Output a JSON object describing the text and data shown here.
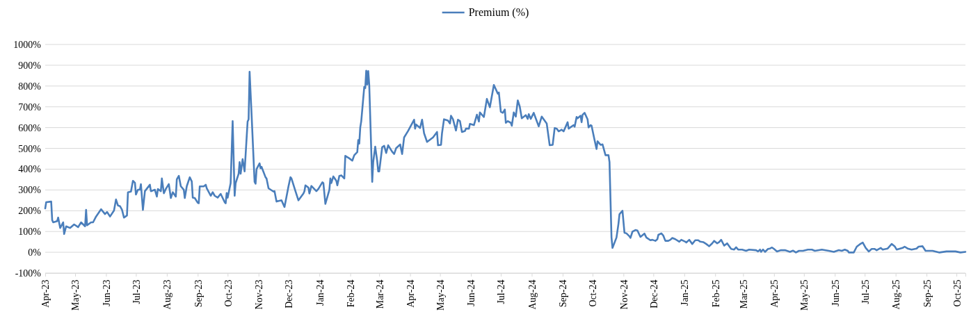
{
  "chart_data": {
    "type": "line",
    "legend": "top",
    "grid": "y",
    "line_style": "solid",
    "marker": "none",
    "xlim": [
      "2023-04-01",
      "2025-10-10"
    ],
    "ylim": [
      -100,
      1000
    ],
    "yticks": [
      {
        "value": -100,
        "label": "-100%"
      },
      {
        "value": 0,
        "label": "0%"
      },
      {
        "value": 100,
        "label": "100%"
      },
      {
        "value": 200,
        "label": "200%"
      },
      {
        "value": 300,
        "label": "300%"
      },
      {
        "value": 400,
        "label": "400%"
      },
      {
        "value": 500,
        "label": "500%"
      },
      {
        "value": 600,
        "label": "600%"
      },
      {
        "value": 700,
        "label": "700%"
      },
      {
        "value": 800,
        "label": "800%"
      },
      {
        "value": 900,
        "label": "900%"
      },
      {
        "value": 1000,
        "label": "1000%"
      }
    ],
    "xticks": [
      {
        "value": "2023-04-01",
        "label": "Apr-23"
      },
      {
        "value": "2023-05-01",
        "label": "May-23"
      },
      {
        "value": "2023-06-01",
        "label": "Jun-23"
      },
      {
        "value": "2023-07-01",
        "label": "Jul-23"
      },
      {
        "value": "2023-08-01",
        "label": "Aug-23"
      },
      {
        "value": "2023-09-01",
        "label": "Sep-23"
      },
      {
        "value": "2023-10-01",
        "label": "Oct-23"
      },
      {
        "value": "2023-11-01",
        "label": "Nov-23"
      },
      {
        "value": "2023-12-01",
        "label": "Dec-23"
      },
      {
        "value": "2024-01-01",
        "label": "Jan-24"
      },
      {
        "value": "2024-02-01",
        "label": "Feb-24"
      },
      {
        "value": "2024-03-01",
        "label": "Mar-24"
      },
      {
        "value": "2024-04-01",
        "label": "Apr-24"
      },
      {
        "value": "2024-05-01",
        "label": "May-24"
      },
      {
        "value": "2024-06-01",
        "label": "Jun-24"
      },
      {
        "value": "2024-07-01",
        "label": "Jul-24"
      },
      {
        "value": "2024-08-01",
        "label": "Aug-24"
      },
      {
        "value": "2024-09-01",
        "label": "Sep-24"
      },
      {
        "value": "2024-10-01",
        "label": "Oct-24"
      },
      {
        "value": "2024-11-01",
        "label": "Nov-24"
      },
      {
        "value": "2024-12-01",
        "label": "Dec-24"
      },
      {
        "value": "2025-01-01",
        "label": "Jan-25"
      },
      {
        "value": "2025-02-01",
        "label": "Feb-25"
      },
      {
        "value": "2025-03-01",
        "label": "Mar-25"
      },
      {
        "value": "2025-04-01",
        "label": "Apr-25"
      },
      {
        "value": "2025-05-01",
        "label": "May-25"
      },
      {
        "value": "2025-06-01",
        "label": "Jun-25"
      },
      {
        "value": "2025-07-01",
        "label": "Jul-25"
      },
      {
        "value": "2025-08-01",
        "label": "Aug-25"
      },
      {
        "value": "2025-09-01",
        "label": "Sep-25"
      },
      {
        "value": "2025-10-01",
        "label": "Oct-25"
      }
    ],
    "series": [
      {
        "name": "Premium (%)",
        "color": "#4a7ebb",
        "x": [
          "2023-04-01",
          "2023-04-02",
          "2023-04-07",
          "2023-04-08",
          "2023-04-09",
          "2023-04-13",
          "2023-04-14",
          "2023-04-16",
          "2023-04-19",
          "2023-04-20",
          "2023-04-22",
          "2023-04-26",
          "2023-04-30",
          "2023-05-04",
          "2023-05-07",
          "2023-05-11",
          "2023-05-12",
          "2023-05-13",
          "2023-05-17",
          "2023-05-19",
          "2023-05-22",
          "2023-05-27",
          "2023-05-31",
          "2023-06-02",
          "2023-06-05",
          "2023-06-09",
          "2023-06-11",
          "2023-06-13",
          "2023-06-15",
          "2023-06-17",
          "2023-06-19",
          "2023-06-22",
          "2023-06-23",
          "2023-06-26",
          "2023-06-28",
          "2023-06-30",
          "2023-07-01",
          "2023-07-03",
          "2023-07-05",
          "2023-07-06",
          "2023-07-08",
          "2023-07-10",
          "2023-07-15",
          "2023-07-16",
          "2023-07-20",
          "2023-07-22",
          "2023-07-23",
          "2023-07-26",
          "2023-07-27",
          "2023-07-29",
          "2023-07-31",
          "2023-08-03",
          "2023-08-05",
          "2023-08-07",
          "2023-08-10",
          "2023-08-11",
          "2023-08-13",
          "2023-08-15",
          "2023-08-18",
          "2023-08-19",
          "2023-08-21",
          "2023-08-24",
          "2023-08-26",
          "2023-08-27",
          "2023-08-29",
          "2023-09-01",
          "2023-09-02",
          "2023-09-03",
          "2023-09-07",
          "2023-09-09",
          "2023-09-10",
          "2023-09-14",
          "2023-09-16",
          "2023-09-18",
          "2023-09-21",
          "2023-09-24",
          "2023-09-28",
          "2023-09-29",
          "2023-09-30",
          "2023-10-01",
          "2023-10-04",
          "2023-10-06",
          "2023-10-08",
          "2023-10-09",
          "2023-10-12",
          "2023-10-13",
          "2023-10-14",
          "2023-10-16",
          "2023-10-18",
          "2023-10-21",
          "2023-10-22",
          "2023-10-23",
          "2023-10-25",
          "2023-10-28",
          "2023-10-29",
          "2023-10-30",
          "2023-11-02",
          "2023-11-03",
          "2023-11-04",
          "2023-11-08",
          "2023-11-09",
          "2023-11-11",
          "2023-11-16",
          "2023-11-17",
          "2023-11-19",
          "2023-11-24",
          "2023-11-27",
          "2023-11-29",
          "2023-12-01",
          "2023-12-03",
          "2023-12-04",
          "2023-12-08",
          "2023-12-11",
          "2023-12-16",
          "2023-12-17",
          "2023-12-18",
          "2023-12-21",
          "2023-12-22",
          "2023-12-24",
          "2023-12-29",
          "2023-12-31",
          "2024-01-04",
          "2024-01-05",
          "2024-01-07",
          "2024-01-11",
          "2024-01-12",
          "2024-01-13",
          "2024-01-15",
          "2024-01-18",
          "2024-01-19",
          "2024-01-21",
          "2024-01-23",
          "2024-01-26",
          "2024-01-27",
          "2024-01-31",
          "2024-02-03",
          "2024-02-05",
          "2024-02-08",
          "2024-02-09",
          "2024-02-10",
          "2024-02-11",
          "2024-02-12",
          "2024-02-15",
          "2024-02-16",
          "2024-02-17",
          "2024-02-18",
          "2024-02-19",
          "2024-02-20",
          "2024-02-23",
          "2024-02-24",
          "2024-02-26",
          "2024-02-28",
          "2024-02-29",
          "2024-03-01",
          "2024-03-04",
          "2024-03-06",
          "2024-03-08",
          "2024-03-10",
          "2024-03-14",
          "2024-03-16",
          "2024-03-18",
          "2024-03-22",
          "2024-03-24",
          "2024-03-26",
          "2024-03-30",
          "2024-04-05",
          "2024-04-06",
          "2024-04-07",
          "2024-04-11",
          "2024-04-13",
          "2024-04-15",
          "2024-04-18",
          "2024-04-21",
          "2024-04-24",
          "2024-04-28",
          "2024-04-29",
          "2024-05-02",
          "2024-05-03",
          "2024-05-05",
          "2024-05-09",
          "2024-05-11",
          "2024-05-12",
          "2024-05-14",
          "2024-05-17",
          "2024-05-19",
          "2024-05-21",
          "2024-05-23",
          "2024-05-26",
          "2024-05-27",
          "2024-05-30",
          "2024-05-31",
          "2024-06-04",
          "2024-06-07",
          "2024-06-09",
          "2024-06-10",
          "2024-06-14",
          "2024-06-17",
          "2024-06-20",
          "2024-06-24",
          "2024-06-28",
          "2024-06-29",
          "2024-07-01",
          "2024-07-03",
          "2024-07-05",
          "2024-07-06",
          "2024-07-08",
          "2024-07-11",
          "2024-07-12",
          "2024-07-14",
          "2024-07-16",
          "2024-07-18",
          "2024-07-20",
          "2024-07-22",
          "2024-07-26",
          "2024-07-28",
          "2024-07-29",
          "2024-07-31",
          "2024-08-03",
          "2024-08-05",
          "2024-08-08",
          "2024-08-11",
          "2024-08-16",
          "2024-08-19",
          "2024-08-22",
          "2024-08-24",
          "2024-08-26",
          "2024-08-28",
          "2024-08-31",
          "2024-09-02",
          "2024-09-06",
          "2024-09-07",
          "2024-09-12",
          "2024-09-13",
          "2024-09-15",
          "2024-09-16",
          "2024-09-19",
          "2024-09-20",
          "2024-09-21",
          "2024-09-23",
          "2024-09-26",
          "2024-09-27",
          "2024-09-29",
          "2024-09-30",
          "2024-10-03",
          "2024-10-05",
          "2024-10-06",
          "2024-10-09",
          "2024-10-11",
          "2024-10-14",
          "2024-10-17",
          "2024-10-18",
          "2024-10-19",
          "2024-10-20",
          "2024-10-21",
          "2024-10-25",
          "2024-10-27",
          "2024-10-28",
          "2024-10-31",
          "2024-11-02",
          "2024-11-04",
          "2024-11-07",
          "2024-11-08",
          "2024-11-10",
          "2024-11-13",
          "2024-11-15",
          "2024-11-18",
          "2024-11-22",
          "2024-11-24",
          "2024-11-28",
          "2024-11-30",
          "2024-12-03",
          "2024-12-05",
          "2024-12-06",
          "2024-12-09",
          "2024-12-11",
          "2024-12-13",
          "2024-12-16",
          "2024-12-18",
          "2024-12-20",
          "2024-12-23",
          "2024-12-27",
          "2024-12-29",
          "2025-01-02",
          "2025-01-03",
          "2025-01-06",
          "2025-01-09",
          "2025-01-12",
          "2025-01-15",
          "2025-01-17",
          "2025-01-20",
          "2025-01-23",
          "2025-01-26",
          "2025-01-29",
          "2025-01-31",
          "2025-02-03",
          "2025-02-05",
          "2025-02-07",
          "2025-02-10",
          "2025-02-13",
          "2025-02-17",
          "2025-02-20",
          "2025-02-22",
          "2025-02-24",
          "2025-02-28",
          "2025-03-04",
          "2025-03-07",
          "2025-03-14",
          "2025-03-16",
          "2025-03-18",
          "2025-03-19",
          "2025-03-21",
          "2025-03-23",
          "2025-03-26",
          "2025-03-28",
          "2025-03-30",
          "2025-04-01",
          "2025-04-04",
          "2025-04-08",
          "2025-04-12",
          "2025-04-17",
          "2025-04-20",
          "2025-04-23",
          "2025-04-26",
          "2025-04-30",
          "2025-05-05",
          "2025-05-09",
          "2025-05-12",
          "2025-05-19",
          "2025-05-26",
          "2025-05-31",
          "2025-06-05",
          "2025-06-08",
          "2025-06-11",
          "2025-06-14",
          "2025-06-15",
          "2025-06-20",
          "2025-06-23",
          "2025-06-26",
          "2025-06-29",
          "2025-07-02",
          "2025-07-05",
          "2025-07-08",
          "2025-07-11",
          "2025-07-13",
          "2025-07-17",
          "2025-07-19",
          "2025-07-24",
          "2025-07-28",
          "2025-07-31",
          "2025-08-02",
          "2025-08-08",
          "2025-08-10",
          "2025-08-13",
          "2025-08-17",
          "2025-08-22",
          "2025-08-24",
          "2025-08-28",
          "2025-08-31",
          "2025-09-07",
          "2025-09-14",
          "2025-09-21",
          "2025-09-30",
          "2025-10-05",
          "2025-10-10"
        ],
        "values": [
          211,
          241,
          244,
          155,
          144,
          150,
          167,
          117,
          144,
          88,
          125,
          117,
          134,
          121,
          144,
          125,
          204,
          130,
          144,
          144,
          172,
          207,
          184,
          194,
          172,
          201,
          254,
          225,
          222,
          205,
          167,
          177,
          289,
          292,
          344,
          334,
          278,
          301,
          301,
          328,
          204,
          294,
          325,
          294,
          301,
          268,
          304,
          294,
          355,
          284,
          305,
          328,
          261,
          289,
          268,
          351,
          368,
          318,
          301,
          261,
          318,
          361,
          341,
          263,
          261,
          238,
          236,
          317,
          317,
          325,
          308,
          272,
          289,
          272,
          263,
          281,
          241,
          236,
          285,
          263,
          333,
          631,
          272,
          333,
          378,
          434,
          378,
          448,
          389,
          629,
          640,
          869,
          662,
          339,
          330,
          400,
          428,
          404,
          411,
          361,
          355,
          308,
          292,
          294,
          244,
          250,
          218,
          267,
          317,
          361,
          355,
          294,
          250,
          283,
          294,
          322,
          311,
          283,
          319,
          294,
          305,
          337,
          333,
          233,
          300,
          355,
          333,
          365,
          344,
          322,
          367,
          370,
          355,
          464,
          452,
          441,
          467,
          482,
          540,
          523,
          601,
          631,
          796,
          790,
          874,
          807,
          872,
          807,
          339,
          434,
          508,
          439,
          389,
          389,
          506,
          512,
          478,
          515,
          484,
          473,
          501,
          519,
          473,
          553,
          584,
          638,
          595,
          615,
          598,
          638,
          573,
          531,
          542,
          553,
          579,
          515,
          517,
          573,
          640,
          634,
          620,
          657,
          640,
          586,
          638,
          631,
          579,
          584,
          595,
          595,
          618,
          612,
          662,
          629,
          673,
          651,
          738,
          698,
          805,
          763,
          769,
          676,
          671,
          687,
          623,
          631,
          623,
          609,
          673,
          653,
          731,
          701,
          645,
          660,
          642,
          665,
          642,
          671,
          645,
          606,
          653,
          620,
          515,
          517,
          598,
          595,
          582,
          590,
          582,
          626,
          595,
          612,
          604,
          651,
          645,
          657,
          626,
          662,
          671,
          640,
          601,
          612,
          609,
          540,
          497,
          534,
          517,
          519,
          467,
          467,
          434,
          250,
          71,
          21,
          71,
          138,
          183,
          200,
          94,
          91,
          77,
          69,
          99,
          107,
          105,
          74,
          90,
          71,
          58,
          60,
          55,
          63,
          84,
          91,
          80,
          55,
          55,
          60,
          69,
          63,
          51,
          60,
          51,
          47,
          60,
          40,
          58,
          58,
          51,
          49,
          40,
          29,
          43,
          55,
          43,
          49,
          60,
          32,
          43,
          16,
          13,
          24,
          13,
          13,
          7,
          13,
          10,
          4,
          13,
          2,
          13,
          2,
          16,
          18,
          23,
          16,
          4,
          10,
          10,
          2,
          8,
          -1,
          7,
          7,
          13,
          13,
          7,
          13,
          7,
          2,
          10,
          7,
          13,
          7,
          -1,
          -1,
          27,
          38,
          47,
          21,
          4,
          16,
          16,
          10,
          21,
          13,
          18,
          40,
          29,
          13,
          21,
          27,
          18,
          13,
          18,
          27,
          29,
          7,
          7,
          -1,
          4,
          4,
          -1,
          2
        ]
      }
    ]
  }
}
